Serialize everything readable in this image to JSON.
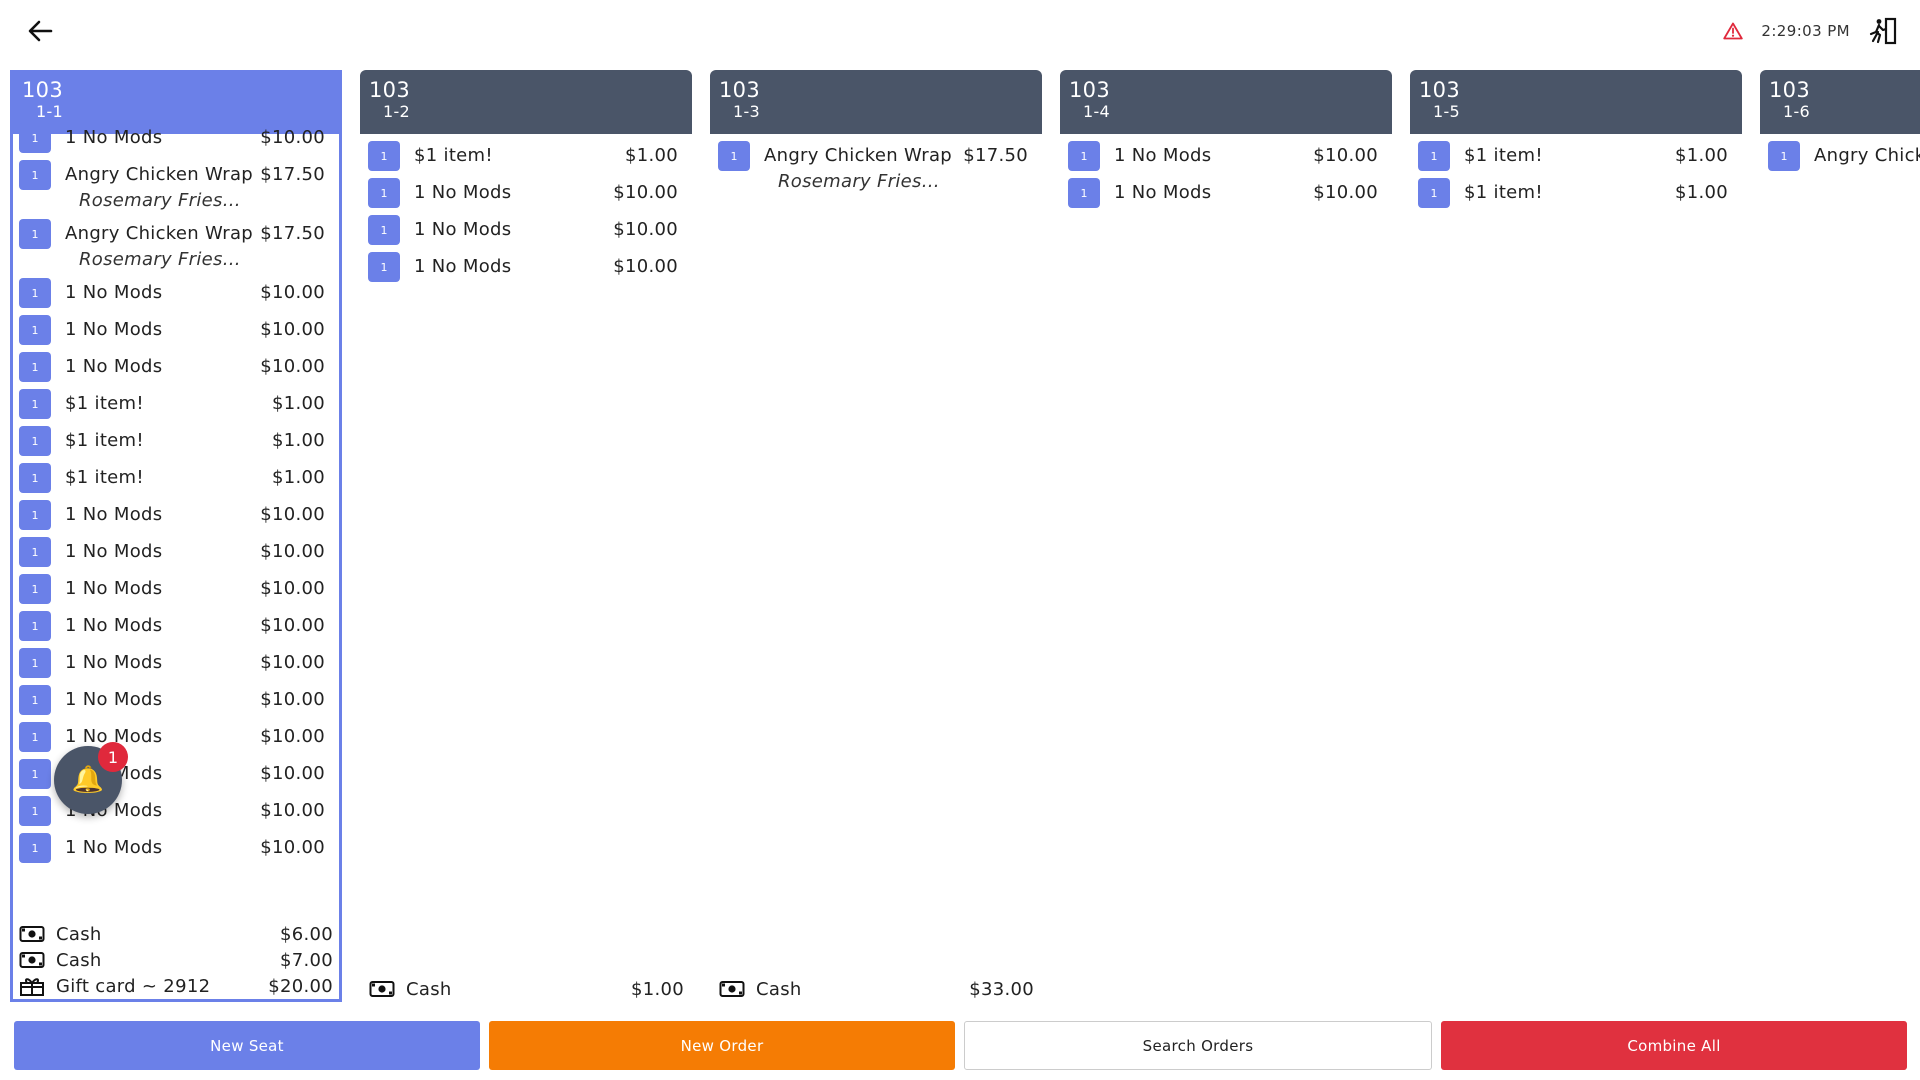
{
  "topbar": {
    "time": "2:29:03 PM"
  },
  "seats": [
    {
      "table": "103",
      "seat": "1-1",
      "selected": true,
      "items": [
        {
          "qty": "1",
          "name": "1 No Mods",
          "price": "$10.00"
        },
        {
          "qty": "1",
          "name": "Angry Chicken Wrap",
          "mod": "Rosemary Fries...",
          "price": "$17.50"
        },
        {
          "qty": "1",
          "name": "Angry Chicken Wrap",
          "mod": "Rosemary Fries...",
          "price": "$17.50"
        },
        {
          "qty": "1",
          "name": "1 No Mods",
          "price": "$10.00"
        },
        {
          "qty": "1",
          "name": "1 No Mods",
          "price": "$10.00"
        },
        {
          "qty": "1",
          "name": "1 No Mods",
          "price": "$10.00"
        },
        {
          "qty": "1",
          "name": "$1 item!",
          "price": "$1.00"
        },
        {
          "qty": "1",
          "name": "$1 item!",
          "price": "$1.00"
        },
        {
          "qty": "1",
          "name": "$1 item!",
          "price": "$1.00"
        },
        {
          "qty": "1",
          "name": "1 No Mods",
          "price": "$10.00"
        },
        {
          "qty": "1",
          "name": "1 No Mods",
          "price": "$10.00"
        },
        {
          "qty": "1",
          "name": "1 No Mods",
          "price": "$10.00"
        },
        {
          "qty": "1",
          "name": "1 No Mods",
          "price": "$10.00"
        },
        {
          "qty": "1",
          "name": "1 No Mods",
          "price": "$10.00"
        },
        {
          "qty": "1",
          "name": "1 No Mods",
          "price": "$10.00"
        },
        {
          "qty": "1",
          "name": "1 No Mods",
          "price": "$10.00"
        },
        {
          "qty": "1",
          "name": "1 No Mods",
          "price": "$10.00"
        },
        {
          "qty": "1",
          "name": "1 No Mods",
          "price": "$10.00"
        },
        {
          "qty": "1",
          "name": "1 No Mods",
          "price": "$10.00"
        }
      ],
      "payments": [
        {
          "icon": "cash-icon",
          "label": "Cash",
          "amount": "$6.00"
        },
        {
          "icon": "cash-icon",
          "label": "Cash",
          "amount": "$7.00"
        },
        {
          "icon": "gift-card-icon",
          "label": "Gift card ~ 2912",
          "amount": "$20.00"
        }
      ]
    },
    {
      "table": "103",
      "seat": "1-2",
      "items": [
        {
          "qty": "1",
          "name": "$1 item!",
          "price": "$1.00"
        },
        {
          "qty": "1",
          "name": "1 No Mods",
          "price": "$10.00"
        },
        {
          "qty": "1",
          "name": "1 No Mods",
          "price": "$10.00"
        },
        {
          "qty": "1",
          "name": "1 No Mods",
          "price": "$10.00"
        }
      ],
      "payments": [
        {
          "icon": "cash-icon",
          "label": "Cash",
          "amount": "$1.00"
        }
      ]
    },
    {
      "table": "103",
      "seat": "1-3",
      "items": [
        {
          "qty": "1",
          "name": "Angry Chicken Wrap",
          "mod": "Rosemary Fries...",
          "price": "$17.50"
        }
      ],
      "payments": [
        {
          "icon": "cash-icon",
          "label": "Cash",
          "amount": "$33.00"
        }
      ]
    },
    {
      "table": "103",
      "seat": "1-4",
      "items": [
        {
          "qty": "1",
          "name": "1 No Mods",
          "price": "$10.00"
        },
        {
          "qty": "1",
          "name": "1 No Mods",
          "price": "$10.00"
        }
      ],
      "payments": []
    },
    {
      "table": "103",
      "seat": "1-5",
      "items": [
        {
          "qty": "1",
          "name": "$1 item!",
          "price": "$1.00"
        },
        {
          "qty": "1",
          "name": "$1 item!",
          "price": "$1.00"
        }
      ],
      "payments": []
    },
    {
      "table": "103",
      "seat": "1-6",
      "items": [
        {
          "qty": "1",
          "name": "Angry Chicken Wrap",
          "price": ""
        }
      ],
      "payments": []
    }
  ],
  "notification": {
    "count": "1"
  },
  "buttons": {
    "new_seat": "New Seat",
    "new_order": "New Order",
    "search_orders": "Search Orders",
    "combine_all": "Combine All"
  },
  "colors": {
    "accent": "#6b80e8",
    "header_dark": "#4a5568",
    "orange": "#f57c04",
    "red": "#e0313f",
    "warning": "#e0293c"
  }
}
